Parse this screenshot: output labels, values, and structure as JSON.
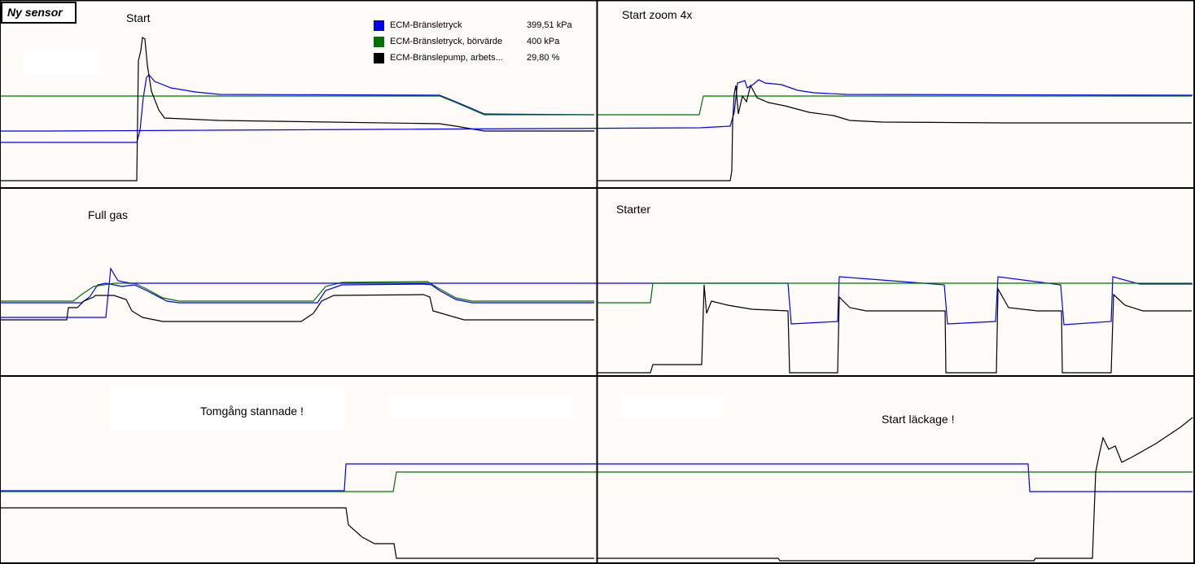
{
  "badge": "Ny sensor",
  "colors": {
    "bransletryck": "#0000ee",
    "borvarde": "#007000",
    "pump": "#000000",
    "background": "#fffbf9",
    "grid": "#000000"
  },
  "legend": [
    {
      "name": "ECM-Bränsletryck",
      "value": "399,51 kPa",
      "color": "#0000ee"
    },
    {
      "name": "ECM-Bränsletryck, börvärde",
      "value": "400 kPa",
      "color": "#007000"
    },
    {
      "name": "ECM-Bränslepump, arbets...",
      "value": "29,80 %",
      "color": "#000000"
    }
  ],
  "chart_data": [
    {
      "type": "line",
      "title": "Start",
      "series": [
        {
          "name": "ECM-Bränsletryck",
          "values": [
            [
              0,
              175
            ],
            [
              168,
              175
            ],
            [
              172,
              160
            ],
            [
              176,
              120
            ],
            [
              180,
              95
            ],
            [
              183,
              92
            ],
            [
              190,
              100
            ],
            [
              210,
              108
            ],
            [
              240,
              113
            ],
            [
              270,
              116
            ],
            [
              540,
              117
            ],
            [
              560,
              125
            ],
            [
              595,
              140
            ],
            [
              730,
              141
            ]
          ]
        },
        {
          "name": "ECM-Bränsletryck, börvärde",
          "values": [
            [
              0,
              118
            ],
            [
              540,
              118
            ],
            [
              560,
              126
            ],
            [
              595,
              141
            ],
            [
              730,
              141
            ]
          ]
        },
        {
          "name": "ECM-Bränslepump, arbets...",
          "values": [
            [
              0,
              222
            ],
            [
              168,
              222
            ],
            [
              170,
              75
            ],
            [
              173,
              62
            ],
            [
              175,
              46
            ],
            [
              178,
              48
            ],
            [
              181,
              80
            ],
            [
              186,
              112
            ],
            [
              195,
              135
            ],
            [
              202,
              145
            ],
            [
              270,
              148
            ],
            [
              540,
              152
            ],
            [
              560,
              155
            ],
            [
              595,
              161
            ],
            [
              730,
              161
            ]
          ]
        }
      ]
    },
    {
      "type": "line",
      "title": "Start zoom 4x",
      "series": [
        {
          "name": "ECM-Bränsletryck",
          "values": [
            [
              0,
              161
            ],
            [
              60,
              161
            ],
            [
              860,
              157
            ],
            [
              897,
              155
            ],
            [
              902,
              138
            ],
            [
              906,
              102
            ],
            [
              915,
              99
            ],
            [
              918,
              108
            ],
            [
              925,
              104
            ],
            [
              932,
              98
            ],
            [
              940,
              102
            ],
            [
              960,
              104
            ],
            [
              980,
              111
            ],
            [
              1000,
              114
            ],
            [
              1040,
              116
            ],
            [
              1465,
              117
            ]
          ]
        },
        {
          "name": "ECM-Bränsletryck, börvärde",
          "values": [
            [
              0,
              141
            ],
            [
              125,
              141
            ],
            [
              130,
              118
            ],
            [
              730,
              118
            ]
          ]
        },
        {
          "name": "ECM-Bränslepump, arbets...",
          "values": [
            [
              0,
              222
            ],
            [
              163,
              222
            ],
            [
              165,
              210
            ],
            [
              166,
              150
            ],
            [
              168,
              115
            ],
            [
              170,
              105
            ],
            [
              173,
              140
            ],
            [
              178,
              118
            ],
            [
              183,
              125
            ],
            [
              188,
              105
            ],
            [
              196,
              120
            ],
            [
              210,
              126
            ],
            [
              230,
              130
            ],
            [
              260,
              138
            ],
            [
              290,
              142
            ],
            [
              310,
              148
            ],
            [
              350,
              150
            ],
            [
              500,
              151
            ],
            [
              730,
              151
            ]
          ]
        }
      ]
    },
    {
      "type": "line",
      "title": "Full gas",
      "series": [
        {
          "name": "ECM-Bränsletryck",
          "values": [
            [
              0,
              372
            ],
            [
              100,
              372
            ],
            [
              110,
              365
            ],
            [
              120,
              350
            ],
            [
              130,
              348
            ],
            [
              150,
              352
            ],
            [
              165,
              350
            ],
            [
              180,
              357
            ],
            [
              205,
              370
            ],
            [
              220,
              372
            ],
            [
              390,
              372
            ],
            [
              400,
              357
            ],
            [
              420,
              350
            ],
            [
              520,
              349
            ],
            [
              530,
              350
            ],
            [
              540,
              357
            ],
            [
              560,
              368
            ],
            [
              580,
              372
            ],
            [
              730,
              372
            ]
          ]
        },
        {
          "name": "ECM-Bränsletryck, börvärde",
          "values": [
            [
              0,
              370
            ],
            [
              90,
              370
            ],
            [
              100,
              362
            ],
            [
              115,
              352
            ],
            [
              140,
              348
            ],
            [
              165,
              348
            ],
            [
              180,
              355
            ],
            [
              200,
              366
            ],
            [
              220,
              370
            ],
            [
              385,
              370
            ],
            [
              400,
              352
            ],
            [
              420,
              347
            ],
            [
              525,
              346
            ],
            [
              540,
              355
            ],
            [
              560,
              366
            ],
            [
              580,
              370
            ],
            [
              730,
              370
            ]
          ]
        },
        {
          "name": "ECM-Bränslepump, arbets...",
          "values": [
            [
              0,
              393
            ],
            [
              82,
              393
            ],
            [
              84,
              378
            ],
            [
              95,
              378
            ],
            [
              103,
              370
            ],
            [
              115,
              365
            ],
            [
              117,
              363
            ],
            [
              140,
              363
            ],
            [
              155,
              368
            ],
            [
              162,
              382
            ],
            [
              175,
              390
            ],
            [
              200,
              395
            ],
            [
              370,
              395
            ],
            [
              385,
              385
            ],
            [
              395,
              370
            ],
            [
              410,
              363
            ],
            [
              520,
              362
            ],
            [
              528,
              365
            ],
            [
              532,
              382
            ],
            [
              570,
              393
            ],
            [
              730,
              393
            ]
          ]
        }
      ]
    },
    {
      "type": "line",
      "title": "Starter",
      "series": [
        {
          "name": "ECM-Bränsletryck",
          "values": [
            [
              0,
              390
            ],
            [
              130,
              390
            ],
            [
              133,
              360
            ],
            [
              136,
              330
            ],
            [
              145,
              345
            ],
            [
              160,
              348
            ],
            [
              968,
              348
            ],
            [
              972,
              398
            ],
            [
              1029,
              395
            ],
            [
              1031,
              340
            ],
            [
              1160,
              350
            ],
            [
              1164,
              398
            ],
            [
              1223,
              395
            ],
            [
              1226,
              340
            ],
            [
              1303,
              350
            ],
            [
              1307,
              399
            ],
            [
              1365,
              395
            ],
            [
              1367,
              340
            ],
            [
              1400,
              349
            ],
            [
              1465,
              349
            ]
          ]
        },
        {
          "name": "ECM-Bränsletryck, börvärde",
          "values": [
            [
              0,
              372
            ],
            [
              65,
              372
            ],
            [
              68,
              348
            ],
            [
              730,
              348
            ]
          ]
        },
        {
          "name": "ECM-Bränslepump, arbets...",
          "values": [
            [
              0,
              458
            ],
            [
              65,
              458
            ],
            [
              68,
              448
            ],
            [
              128,
              448
            ],
            [
              131,
              350
            ],
            [
              134,
              385
            ],
            [
              140,
              370
            ],
            [
              160,
              375
            ],
            [
              190,
              380
            ],
            [
              234,
              382
            ],
            [
              236,
              458
            ],
            [
              295,
              458
            ],
            [
              297,
              365
            ],
            [
              310,
              378
            ],
            [
              330,
              382
            ],
            [
              427,
              382
            ],
            [
              428,
              458
            ],
            [
              490,
              458
            ],
            [
              492,
              355
            ],
            [
              505,
              378
            ],
            [
              540,
              382
            ],
            [
              570,
              382
            ],
            [
              571,
              458
            ],
            [
              631,
              458
            ],
            [
              634,
              362
            ],
            [
              648,
              375
            ],
            [
              670,
              382
            ],
            [
              730,
              382
            ]
          ]
        }
      ]
    },
    {
      "type": "line",
      "title": "Tomgång stannade !",
      "series": [
        {
          "name": "ECM-Bränsletryck",
          "values": [
            [
              0,
              603
            ],
            [
              423,
              603
            ],
            [
              425,
              570
            ],
            [
              1263,
              570
            ],
            [
              1265,
              604
            ],
            [
              1465,
              604
            ]
          ]
        },
        {
          "name": "ECM-Bränsletryck, börvärde",
          "values": [
            [
              0,
              604
            ],
            [
              483,
              604
            ],
            [
              487,
              580
            ],
            [
              1465,
              580
            ]
          ]
        },
        {
          "name": "ECM-Bränslepump, arbets...",
          "values": [
            [
              0,
              624
            ],
            [
              425,
              624
            ],
            [
              428,
              645
            ],
            [
              445,
              660
            ],
            [
              460,
              668
            ],
            [
              484,
              668
            ],
            [
              487,
              686
            ],
            [
              730,
              686
            ]
          ]
        }
      ]
    },
    {
      "type": "line",
      "title": "Start läckage !",
      "series": [
        {
          "name": "ECM-Bränslepump, arbets...",
          "values": [
            [
              734,
              686
            ],
            [
              956,
              686
            ],
            [
              958,
              689
            ],
            [
              1270,
              689
            ],
            [
              1272,
              686
            ],
            [
              1342,
              686
            ],
            [
              1346,
              580
            ],
            [
              1350,
              560
            ],
            [
              1355,
              538
            ],
            [
              1362,
              552
            ],
            [
              1370,
              548
            ],
            [
              1378,
              568
            ],
            [
              1390,
              562
            ],
            [
              1420,
              545
            ],
            [
              1450,
              525
            ],
            [
              1465,
              513
            ]
          ]
        }
      ]
    }
  ],
  "panels": [
    {
      "title": "Start"
    },
    {
      "title": "Start zoom 4x"
    },
    {
      "title": "Full gas"
    },
    {
      "title": "Starter"
    },
    {
      "title": "Tomgång stannade !"
    },
    {
      "title": "Start läckage !"
    }
  ]
}
